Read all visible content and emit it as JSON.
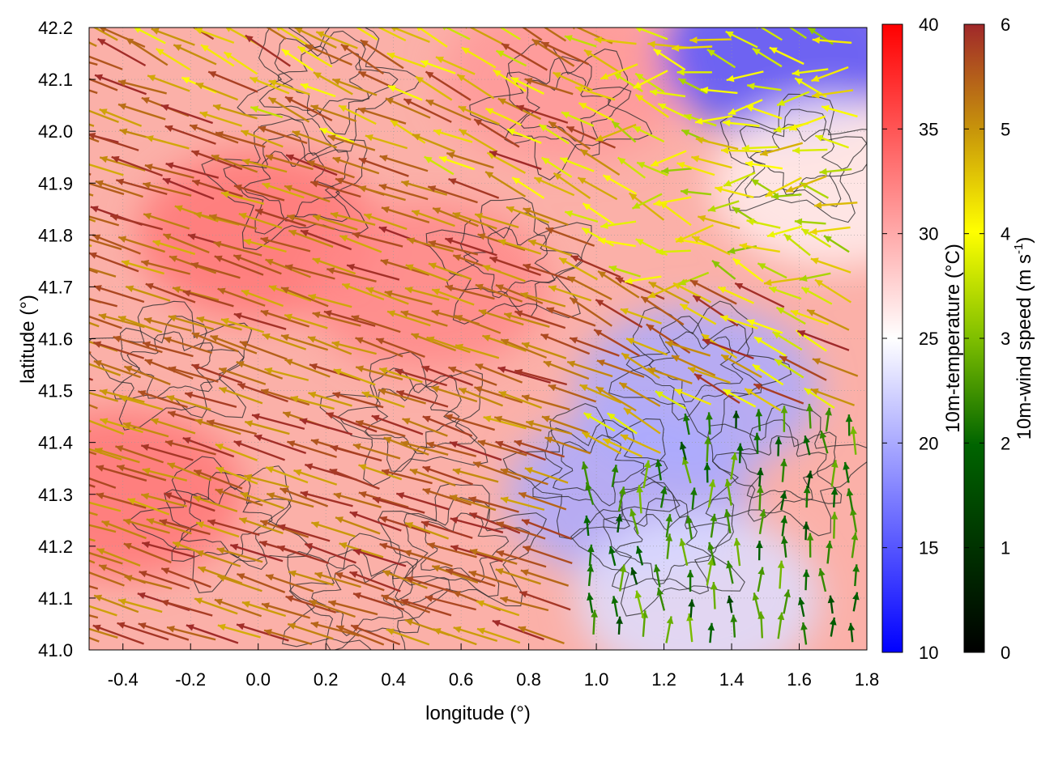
{
  "chart_data": {
    "type": "heatmap",
    "subtype": "temperature field with wind vectors and terrain contours",
    "xlabel": "longitude (°)",
    "ylabel": "latitude (°)",
    "xlim": [
      -0.5,
      1.8
    ],
    "ylim": [
      41.0,
      42.2
    ],
    "xticks": [
      "-0.4",
      "-0.2",
      "0.0",
      "0.2",
      "0.4",
      "0.6",
      "0.8",
      "1.0",
      "1.2",
      "1.4",
      "1.6",
      "1.8"
    ],
    "yticks": [
      "41.0",
      "41.1",
      "41.2",
      "41.3",
      "41.4",
      "41.5",
      "41.6",
      "41.7",
      "41.8",
      "41.9",
      "42.0",
      "42.1",
      "42.2"
    ],
    "grid": true,
    "colorbars": [
      {
        "label": "10m-temperature (°C)",
        "range": [
          10,
          40
        ],
        "ticks": [
          "10",
          "15",
          "20",
          "25",
          "30",
          "35",
          "40"
        ],
        "colors": [
          "#0000ff",
          "#ffffff",
          "#ff0000"
        ]
      },
      {
        "label_main": "10m-wind speed (m s",
        "label_sup": "-1",
        "label_end": ")",
        "range": [
          0,
          6
        ],
        "ticks": [
          "0",
          "1",
          "2",
          "3",
          "4",
          "5",
          "6"
        ],
        "colors": [
          "#000000",
          "#006400",
          "#7fbf00",
          "#ffff00",
          "#c8960a",
          "#a0282a"
        ]
      }
    ],
    "temperature_regions_degC": [
      {
        "lon": -0.4,
        "lat": 41.3,
        "t": 33
      },
      {
        "lon": 0.0,
        "lat": 41.8,
        "t": 33
      },
      {
        "lon": 0.5,
        "lat": 41.7,
        "t": 32
      },
      {
        "lon": 0.9,
        "lat": 42.1,
        "t": 31
      },
      {
        "lon": 1.1,
        "lat": 41.3,
        "t": 20
      },
      {
        "lon": 1.3,
        "lat": 41.5,
        "t": 20
      },
      {
        "lon": 1.55,
        "lat": 42.15,
        "t": 15
      },
      {
        "lon": 1.3,
        "lat": 41.1,
        "t": 23
      },
      {
        "lon": 1.7,
        "lat": 41.9,
        "t": 26
      }
    ],
    "wind_regimes": [
      {
        "region": "west / south-west",
        "direction": "towards west-north-west",
        "speed_ms": 6
      },
      {
        "region": "north-east",
        "direction": "variable",
        "speed_ms": 3.5
      },
      {
        "region": "south-east coast",
        "direction": "towards north / north-west",
        "speed_ms": 1.5
      }
    ]
  }
}
